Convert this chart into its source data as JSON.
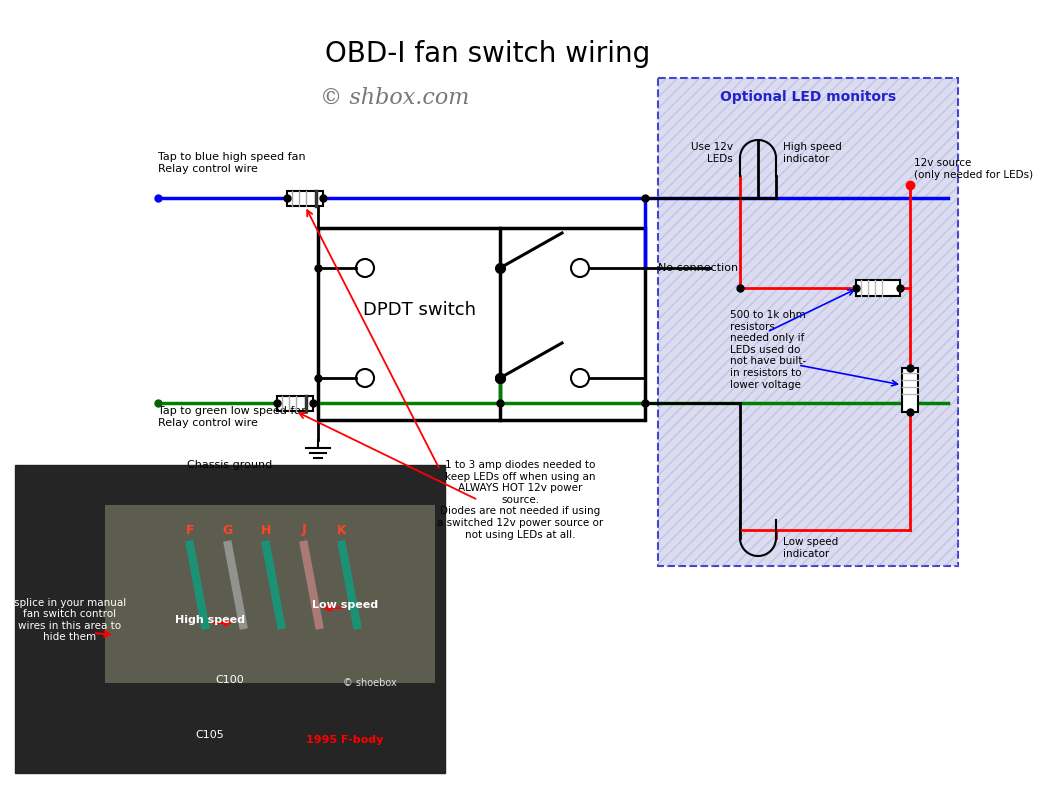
{
  "title": "OBD-I fan switch wiring",
  "title_fontsize": 20,
  "watermark": "© shbox.com",
  "bg_color": "#ffffff",
  "led_box_facecolor": "#dcdcf0",
  "led_box_edge": "#4444cc",
  "led_title": "Optional LED monitors",
  "led_title_color": "#2222cc",
  "annotations": {
    "tap_blue": "Tap to blue high speed fan\nRelay control wire",
    "tap_green": "Tap to green low speed fan\nRelay control wire",
    "chassis_ground": "Chassis ground",
    "dpdt": "DPDT switch",
    "no_connection": "No connection",
    "diode_note": "1 to 3 amp diodes needed to\nkeep LEDs off when using an\nALWAYS HOT 12v power\nsource.\nDiodes are not needed if using\na switched 12v power source or\nnot using LEDs at all.",
    "resistor_note": "500 to 1k ohm\nresistors\nneeded only if\nLEDs used do\nnot have built-\nin resistors to\nlower voltage",
    "use_12v": "Use 12v\nLEDs",
    "high_speed_ind": "High speed\nindicator",
    "low_speed_ind": "Low speed\nindicator",
    "12v_source": "12v source\n(only needed for LEDs)",
    "splice_note": "splice in your manual\nfan switch control\nwires in this area to\nhide them",
    "high_speed_label": "High speed",
    "low_speed_label": "Low speed",
    "c100": "C100",
    "c105": "C105",
    "fbody": "1995 F-body",
    "shoebox": "© shoebox",
    "fghjk": [
      "F",
      "G",
      "H",
      "J",
      "K"
    ]
  }
}
